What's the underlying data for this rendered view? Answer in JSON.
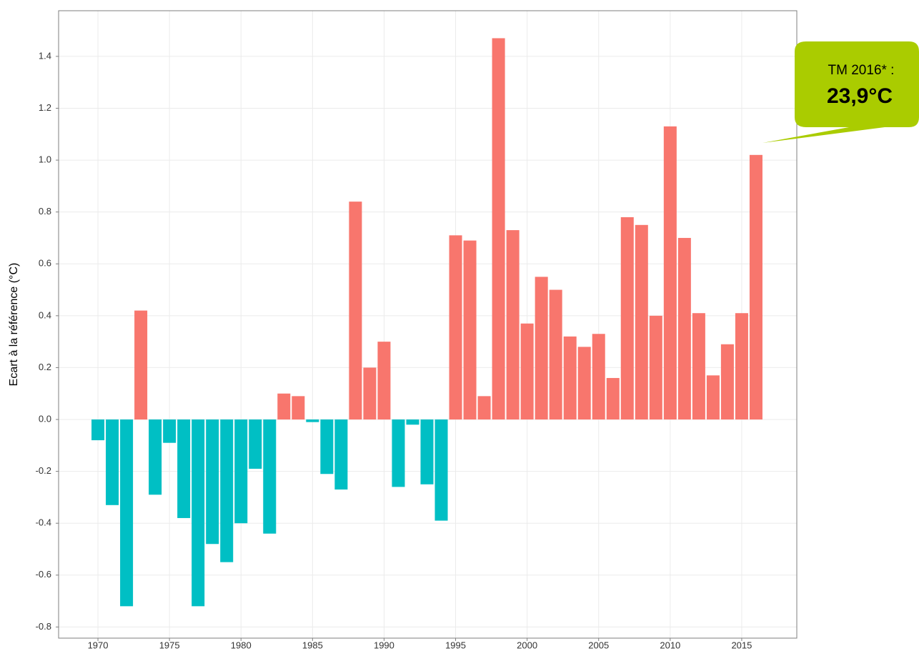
{
  "chart_data": {
    "type": "bar",
    "y_label": "Ecart à la référence (°C)",
    "x": [
      1970,
      1971,
      1972,
      1973,
      1974,
      1975,
      1976,
      1977,
      1978,
      1979,
      1980,
      1981,
      1982,
      1983,
      1984,
      1985,
      1986,
      1987,
      1988,
      1989,
      1990,
      1991,
      1992,
      1993,
      1994,
      1995,
      1996,
      1997,
      1998,
      1999,
      2000,
      2001,
      2002,
      2003,
      2004,
      2005,
      2006,
      2007,
      2008,
      2009,
      2010,
      2011,
      2012,
      2013,
      2014,
      2015,
      2016
    ],
    "values": [
      -0.08,
      -0.33,
      -0.72,
      0.42,
      -0.29,
      -0.09,
      -0.38,
      -0.72,
      -0.48,
      -0.55,
      -0.4,
      -0.19,
      -0.44,
      0.1,
      0.09,
      -0.01,
      -0.21,
      -0.27,
      0.84,
      0.2,
      0.3,
      -0.26,
      -0.02,
      -0.25,
      -0.39,
      0.71,
      0.69,
      0.09,
      1.47,
      0.73,
      0.37,
      0.55,
      0.5,
      0.32,
      0.28,
      0.33,
      0.16,
      0.78,
      0.75,
      0.4,
      1.13,
      0.7,
      0.41,
      0.17,
      0.29,
      0.41,
      1.02
    ],
    "positive_color": "#f8766d",
    "negative_color": "#00bfc4",
    "xlim": [
      1967.25,
      2018.85
    ],
    "xticks": [
      1970,
      1975,
      1980,
      1985,
      1990,
      1995,
      2000,
      2005,
      2010,
      2015
    ],
    "ylim": [
      -0.843,
      1.576
    ],
    "yticks": [
      {
        "value": -0.8,
        "label": "-0.8"
      },
      -0.6,
      -0.4,
      -0.2,
      {
        "value": 0,
        "label": "0.0"
      },
      0.2,
      0.4,
      0.6,
      0.8,
      {
        "value": 1,
        "label": "1.0"
      },
      1.2,
      1.4
    ],
    "grid": true,
    "annotation": {
      "text": "TM 2016* :",
      "value_text": "23,9°C",
      "color": "#aacc00"
    }
  }
}
